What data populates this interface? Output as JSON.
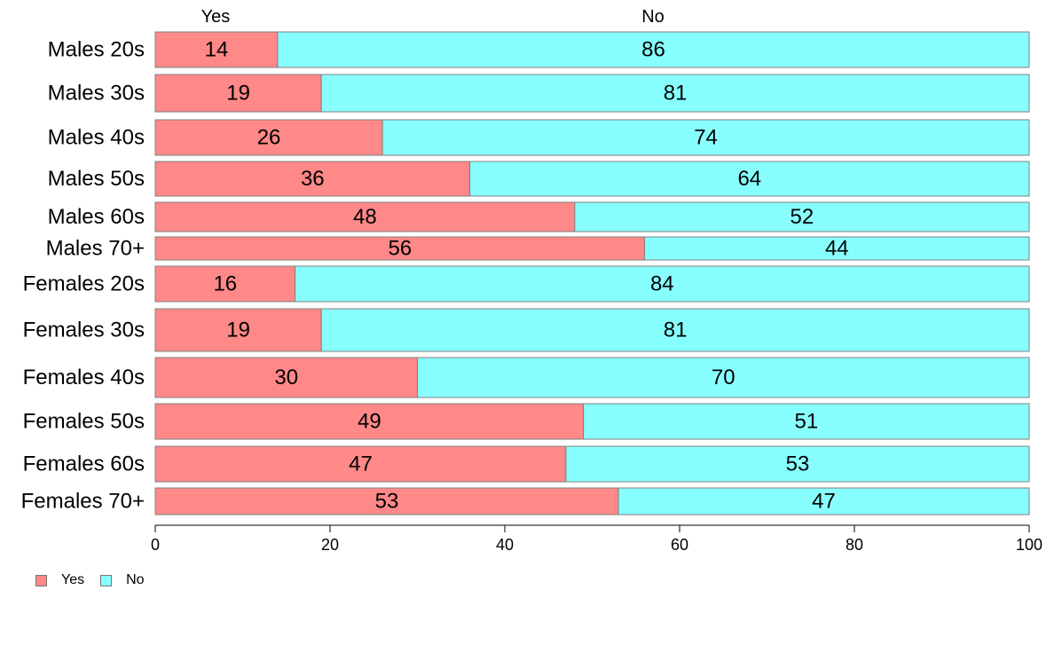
{
  "chart_data": {
    "type": "bar",
    "orientation": "horizontal",
    "stacked": true,
    "categories": [
      "Males 20s",
      "Males 30s",
      "Males 40s",
      "Males 50s",
      "Males 60s",
      "Males 70+",
      "Females 20s",
      "Females 30s",
      "Females 40s",
      "Females 50s",
      "Females 60s",
      "Females 70+"
    ],
    "series": [
      {
        "name": "Yes",
        "color": "#ff8888",
        "values": [
          14,
          19,
          26,
          36,
          48,
          56,
          16,
          19,
          30,
          49,
          47,
          53
        ]
      },
      {
        "name": "No",
        "color": "#88ffff",
        "values": [
          86,
          81,
          74,
          64,
          52,
          44,
          84,
          81,
          70,
          51,
          53,
          47
        ]
      }
    ],
    "column_headers": [
      "Yes",
      "No"
    ],
    "xlim": [
      0,
      100
    ],
    "xticks": [
      0,
      20,
      40,
      60,
      80,
      100
    ],
    "grid": false,
    "legend_position": "bottom-left"
  }
}
